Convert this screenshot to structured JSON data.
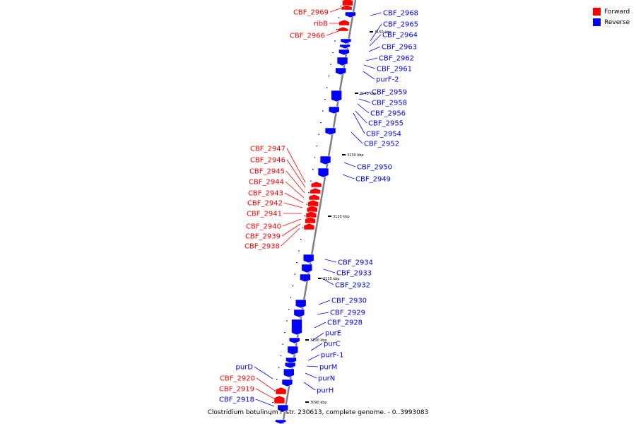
{
  "colors": {
    "forward": "#ff0000",
    "reverse": "#0000ff",
    "axis": "#808080"
  },
  "legend": [
    {
      "label": "Forward",
      "strand": "forward"
    },
    {
      "label": "Reverse",
      "strand": "reverse"
    }
  ],
  "caption": "Clostridium botulinum F str. 230613, complete genome. - 0..3993083",
  "ticks": [
    "3090 kbp",
    "3100 kbp",
    "3110 kbp",
    "3120 kbp",
    "3130 kbp",
    "3140 kbp",
    "3150 kbp"
  ],
  "genes": {
    "forward": [
      "CBF_2969",
      "ribB",
      "CBF_2966",
      "CBF_2947",
      "CBF_2946",
      "CBF_2945",
      "CBF_2944",
      "CBF_2943",
      "CBF_2942",
      "CBF_2941",
      "CBF_2940",
      "CBF_2939",
      "CBF_2938",
      "CBF_2920",
      "CBF_2919"
    ],
    "reverse": [
      "CBF_2968",
      "CBF_2965",
      "CBF_2964",
      "CBF_2963",
      "CBF_2962",
      "CBF_2961",
      "purF-2",
      "CBF_2959",
      "CBF_2958",
      "CBF_2956",
      "CBF_2955",
      "CBF_2954",
      "CBF_2952",
      "CBF_2950",
      "CBF_2949",
      "CBF_2934",
      "CBF_2933",
      "CBF_2932",
      "CBF_2930",
      "CBF_2929",
      "CBF_2928",
      "purE",
      "purC",
      "purF-1",
      "purM",
      "purN",
      "purH",
      "purD",
      "CBF_2918"
    ]
  }
}
